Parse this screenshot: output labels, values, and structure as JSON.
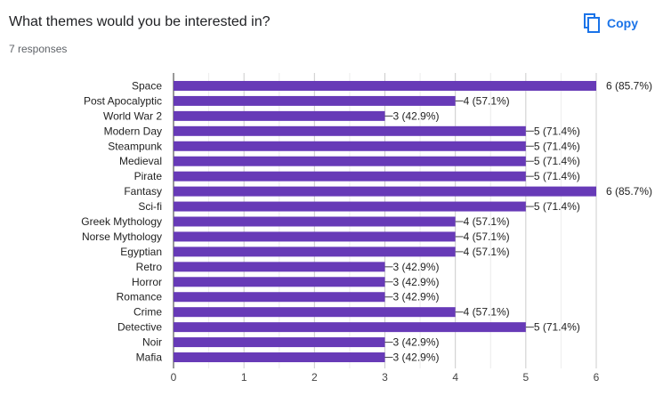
{
  "header": {
    "question": "What themes would you be interested in?",
    "responses": "7 responses",
    "copy_label": "Copy",
    "accent_color": "#1a73e8"
  },
  "chart_data": {
    "type": "bar",
    "orientation": "horizontal",
    "title": "",
    "xlabel": "",
    "ylabel": "",
    "xlim": [
      0,
      6
    ],
    "x_ticks": [
      0,
      1,
      2,
      3,
      4,
      5,
      6
    ],
    "grid": true,
    "bar_color": "#673ab7",
    "categories": [
      "Space",
      "Post Apocalyptic",
      "World War 2",
      "Modern Day",
      "Steampunk",
      "Medieval",
      "Pirate",
      "Fantasy",
      "Sci-fi",
      "Greek Mythology",
      "Norse Mythology",
      "Egyptian",
      "Retro",
      "Horror",
      "Romance",
      "Crime",
      "Detective",
      "Noir",
      "Mafia"
    ],
    "values": [
      6,
      4,
      3,
      5,
      5,
      5,
      5,
      6,
      5,
      4,
      4,
      4,
      3,
      3,
      3,
      4,
      5,
      3,
      3
    ],
    "labels": [
      "6 (85.7%)",
      "4 (57.1%)",
      "3 (42.9%)",
      "5 (71.4%)",
      "5 (71.4%)",
      "5 (71.4%)",
      "5 (71.4%)",
      "6 (85.7%)",
      "5 (71.4%)",
      "4 (57.1%)",
      "4 (57.1%)",
      "4 (57.1%)",
      "3 (42.9%)",
      "3 (42.9%)",
      "3 (42.9%)",
      "4 (57.1%)",
      "5 (71.4%)",
      "3 (42.9%)",
      "3 (42.9%)"
    ]
  }
}
